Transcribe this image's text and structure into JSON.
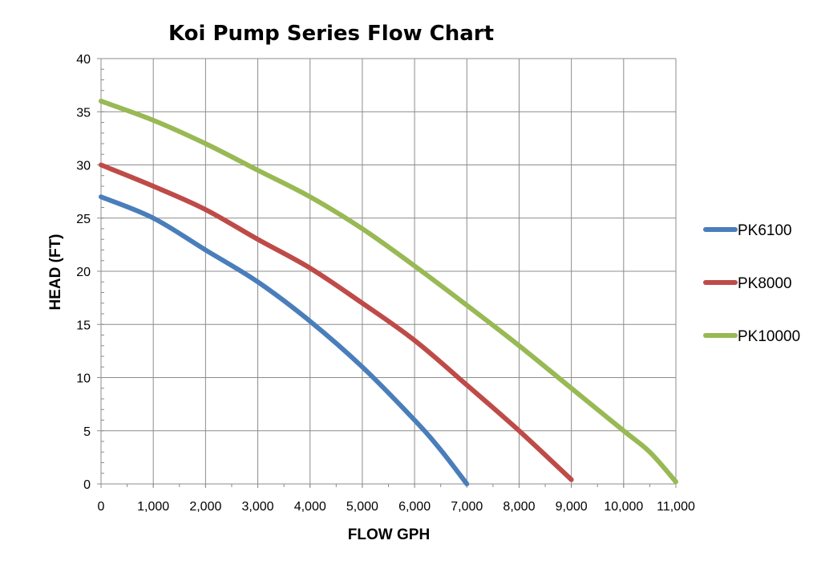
{
  "colors": {
    "PK6100": "#4a7ebb",
    "PK8000": "#be4b48",
    "PK10000": "#98b954",
    "grid": "#8c8c8c"
  },
  "chart_data": {
    "type": "line",
    "title": "Koi Pump Series Flow Chart",
    "xlabel": "FLOW GPH",
    "ylabel": "HEAD (FT)",
    "xlim": [
      0,
      11000
    ],
    "ylim": [
      0,
      40
    ],
    "x_ticks": [
      0,
      1000,
      2000,
      3000,
      4000,
      5000,
      6000,
      7000,
      8000,
      9000,
      10000,
      11000
    ],
    "x_tick_labels": [
      "0",
      "1,000",
      "2,000",
      "3,000",
      "4,000",
      "5,000",
      "6,000",
      "7,000",
      "8,000",
      "9,000",
      "10,000",
      "11,000"
    ],
    "y_ticks": [
      0,
      5,
      10,
      15,
      20,
      25,
      30,
      35,
      40
    ],
    "y_tick_labels": [
      "0",
      "5",
      "10",
      "15",
      "20",
      "25",
      "30",
      "35",
      "40"
    ],
    "grid": true,
    "legend_position": "right",
    "series": [
      {
        "name": "PK6100",
        "color": "#4a7ebb",
        "x": [
          0,
          1000,
          2000,
          3000,
          4000,
          5000,
          6000,
          6500,
          7000
        ],
        "y": [
          27,
          25,
          22,
          19,
          15.3,
          11,
          6,
          3.2,
          0
        ]
      },
      {
        "name": "PK8000",
        "color": "#be4b48",
        "x": [
          0,
          1000,
          2000,
          3000,
          4000,
          5000,
          6000,
          7000,
          8000,
          9000
        ],
        "y": [
          30,
          28,
          25.8,
          23,
          20.3,
          17,
          13.5,
          9.3,
          5,
          0.4
        ]
      },
      {
        "name": "PK10000",
        "color": "#98b954",
        "x": [
          0,
          1000,
          2000,
          3000,
          4000,
          5000,
          6000,
          7000,
          8000,
          9000,
          10000,
          10500,
          11000
        ],
        "y": [
          36,
          34.2,
          32,
          29.5,
          27,
          24,
          20.5,
          16.8,
          13,
          9,
          5,
          3,
          0.2
        ]
      }
    ]
  }
}
